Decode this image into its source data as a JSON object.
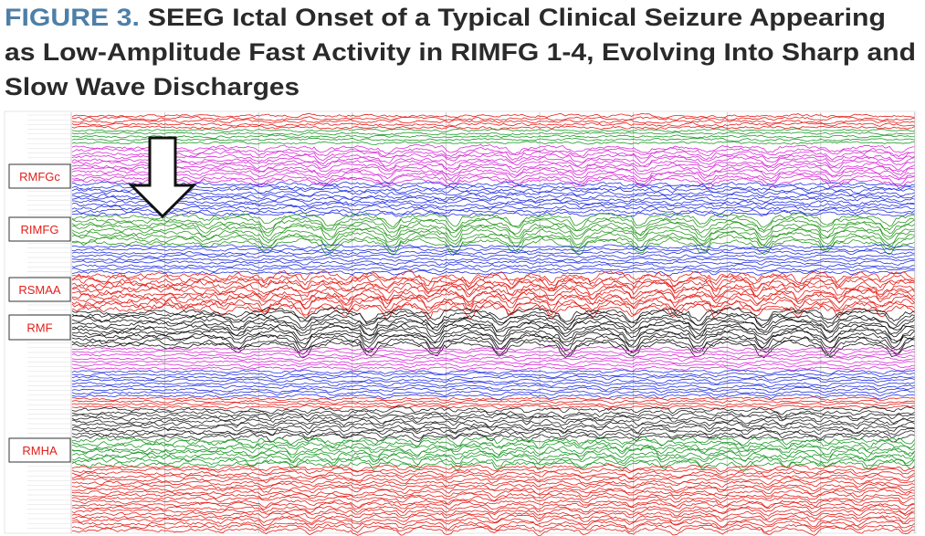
{
  "figure": {
    "label": "FIGURE 3.",
    "title_lines": [
      "SEEG Ictal Onset of a Typical Clinical Seizure Appearing",
      "as Low-Amplitude Fast Activity in RIMFG 1-4, Evolving Into Sharp and",
      "Slow Wave Discharges"
    ],
    "region_labels": [
      "RMFGc",
      "RIMFG",
      "RSMAA",
      "RMF",
      "RMHA"
    ]
  }
}
